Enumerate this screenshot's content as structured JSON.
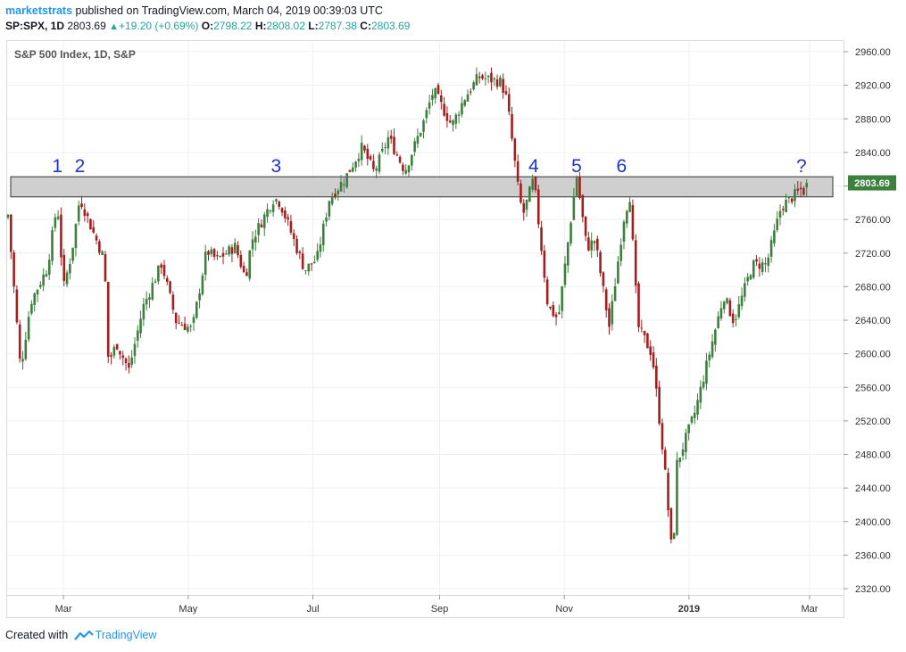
{
  "header": {
    "author": "marketstrats",
    "published_text": "published on TradingView.com, March 04, 2019 00:39:03 UTC",
    "symbol": "SP:SPX, 1D",
    "price": "2803.69",
    "change": "+19.20 (+0.69%)",
    "o_label": "O:",
    "o_value": "2798.22",
    "h_label": "H:",
    "h_value": "2808.02",
    "l_label": "L:",
    "l_value": "2787.38",
    "c_label": "C:",
    "c_value": "2803.69"
  },
  "footer": {
    "created_with": "Created with",
    "brand": "TradingView"
  },
  "colors": {
    "up": "#3d7f3d",
    "down": "#a31f1f",
    "band_fill": "#cfcfcf",
    "band_stroke": "#333333",
    "label_blue": "#2233cc",
    "price_tag": "#3d7f3d",
    "grid": "#eef0f3"
  },
  "chart_data": {
    "type": "candlestick",
    "title": "S&P 500 Index, 1D, S&P",
    "current_price_label": "2803.69",
    "y_ticks": [
      "2960.00",
      "2920.00",
      "2880.00",
      "2840.00",
      "2800.00",
      "2760.00",
      "2720.00",
      "2680.00",
      "2640.00",
      "2600.00",
      "2560.00",
      "2520.00",
      "2480.00",
      "2440.00",
      "2400.00",
      "2360.00",
      "2320.00"
    ],
    "y_range": [
      2320,
      2960
    ],
    "x_ticks": [
      "Mar",
      "May",
      "Jul",
      "Sep",
      "Nov",
      "2019",
      "Mar"
    ],
    "resistance_zone": [
      2787,
      2811
    ],
    "annotations": [
      "1",
      "2",
      "3",
      "4",
      "5",
      "6",
      "?"
    ],
    "close_path": [
      [
        "2018-02-02",
        2762
      ],
      [
        "2018-02-08",
        2581
      ],
      [
        "2018-02-13",
        2662
      ],
      [
        "2018-02-21",
        2702
      ],
      [
        "2018-02-26",
        2780
      ],
      [
        "2018-03-01",
        2678
      ],
      [
        "2018-03-05",
        2720
      ],
      [
        "2018-03-09",
        2786
      ],
      [
        "2018-03-15",
        2748
      ],
      [
        "2018-03-21",
        2712
      ],
      [
        "2018-03-23",
        2590
      ],
      [
        "2018-03-27",
        2612
      ],
      [
        "2018-04-02",
        2581
      ],
      [
        "2018-04-09",
        2656
      ],
      [
        "2018-04-18",
        2708
      ],
      [
        "2018-04-25",
        2639
      ],
      [
        "2018-05-03",
        2629
      ],
      [
        "2018-05-10",
        2723
      ],
      [
        "2018-05-15",
        2712
      ],
      [
        "2018-05-24",
        2728
      ],
      [
        "2018-05-29",
        2690
      ],
      [
        "2018-06-01",
        2735
      ],
      [
        "2018-06-12",
        2786
      ],
      [
        "2018-06-15",
        2780
      ],
      [
        "2018-06-27",
        2700
      ],
      [
        "2018-07-03",
        2713
      ],
      [
        "2018-07-09",
        2784
      ],
      [
        "2018-07-17",
        2810
      ],
      [
        "2018-07-25",
        2846
      ],
      [
        "2018-07-31",
        2816
      ],
      [
        "2018-08-07",
        2858
      ],
      [
        "2018-08-15",
        2818
      ],
      [
        "2018-08-24",
        2875
      ],
      [
        "2018-08-29",
        2914
      ],
      [
        "2018-09-07",
        2872
      ],
      [
        "2018-09-13",
        2904
      ],
      [
        "2018-09-20",
        2930
      ],
      [
        "2018-10-01",
        2924
      ],
      [
        "2018-10-04",
        2902
      ],
      [
        "2018-10-10",
        2785
      ],
      [
        "2018-10-12",
        2767
      ],
      [
        "2018-10-17",
        2809
      ],
      [
        "2018-10-24",
        2656
      ],
      [
        "2018-10-29",
        2641
      ],
      [
        "2018-11-07",
        2813
      ],
      [
        "2018-11-12",
        2726
      ],
      [
        "2018-11-16",
        2736
      ],
      [
        "2018-11-23",
        2632
      ],
      [
        "2018-11-30",
        2760
      ],
      [
        "2018-12-03",
        2790
      ],
      [
        "2018-12-07",
        2633
      ],
      [
        "2018-12-14",
        2599
      ],
      [
        "2018-12-20",
        2467
      ],
      [
        "2018-12-24",
        2351
      ],
      [
        "2018-12-26",
        2468
      ],
      [
        "2019-01-04",
        2531
      ],
      [
        "2019-01-18",
        2670
      ],
      [
        "2019-01-23",
        2638
      ],
      [
        "2019-02-01",
        2706
      ],
      [
        "2019-02-08",
        2707
      ],
      [
        "2019-02-15",
        2775
      ],
      [
        "2019-02-25",
        2796
      ],
      [
        "2019-02-27",
        2792
      ],
      [
        "2019-03-01",
        2803.69
      ]
    ]
  }
}
